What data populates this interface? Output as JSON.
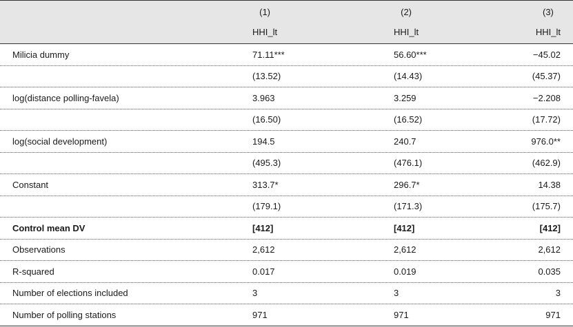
{
  "table": {
    "columns": [
      "(1)",
      "(2)",
      "(3)"
    ],
    "dependent": [
      "HHI_lt",
      "HHI_lt",
      "HHI_lt"
    ],
    "rows": [
      {
        "label": "Milicia dummy",
        "cells": [
          "71.11***",
          "56.60***",
          "−45.02"
        ]
      },
      {
        "cells": [
          "(13.52)",
          "(14.43)",
          "(45.37)"
        ]
      },
      {
        "label": "log(distance polling-favela)",
        "cells": [
          "3.963",
          "3.259",
          "−2.208"
        ]
      },
      {
        "cells": [
          "(16.50)",
          "(16.52)",
          "(17.72)"
        ]
      },
      {
        "label": "log(social development)",
        "cells": [
          "194.5",
          "240.7",
          "976.0**"
        ]
      },
      {
        "cells": [
          "(495.3)",
          "(476.1)",
          "(462.9)"
        ]
      },
      {
        "label": "Constant",
        "cells": [
          "313.7*",
          "296.7*",
          "14.38"
        ]
      },
      {
        "cells": [
          "(179.1)",
          "(171.3)",
          "(175.7)"
        ]
      },
      {
        "label": "Control mean DV",
        "cells": [
          "[412]",
          "[412]",
          "[412]"
        ],
        "bold": true
      },
      {
        "label": "Observations",
        "cells": [
          "2,612",
          "2,612",
          "2,612"
        ]
      },
      {
        "label": "R-squared",
        "cells": [
          "0.017",
          "0.019",
          "0.035"
        ]
      },
      {
        "label": "Number of elections included",
        "cells": [
          "3",
          "3",
          "3"
        ]
      },
      {
        "label": "Number of polling stations",
        "cells": [
          "971",
          "971",
          "971"
        ]
      }
    ]
  }
}
